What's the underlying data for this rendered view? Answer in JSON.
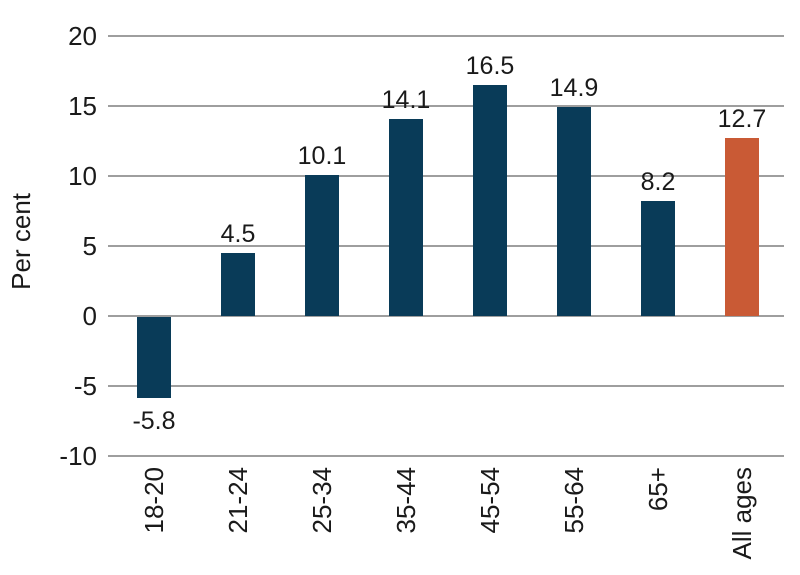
{
  "chart_data": {
    "type": "bar",
    "categories": [
      "18-20",
      "21-24",
      "25-34",
      "35-44",
      "45-54",
      "55-64",
      "65+",
      "All ages"
    ],
    "values": [
      -5.8,
      4.5,
      10.1,
      14.1,
      16.5,
      14.9,
      8.2,
      12.7
    ],
    "value_labels": [
      "-5.8",
      "4.5",
      "10.1",
      "14.1",
      "16.5",
      "14.9",
      "8.2",
      "12.7"
    ],
    "title": "",
    "xlabel": "",
    "ylabel": "Per cent",
    "ylim": [
      -10,
      20
    ],
    "yticks": [
      20,
      15,
      10,
      5,
      0,
      -5,
      -10
    ],
    "grid": true,
    "legend_position": "none",
    "colors": {
      "bar": "#093b58",
      "highlight_bar": "#c95a35",
      "gridline": "#9e9e9e",
      "text": "#1a1a1a",
      "background": "#ffffff"
    },
    "highlight_index": 7
  }
}
